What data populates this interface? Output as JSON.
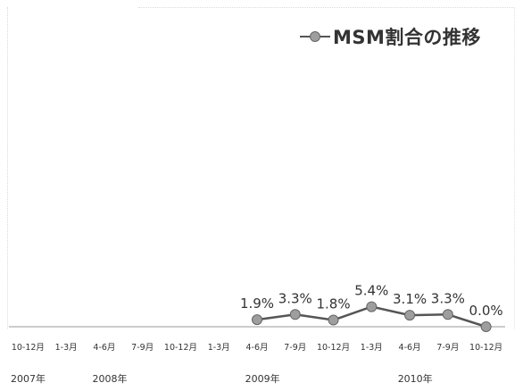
{
  "chart_data": {
    "type": "line",
    "legend": {
      "label": "MSM割合の推移",
      "placement": "top-right"
    },
    "categories": [
      "10-12月",
      "1-3月",
      "4-6月",
      "7-9月",
      "10-12月",
      "1-3月",
      "4-6月",
      "7-9月",
      "10-12月",
      "1-3月",
      "4-6月",
      "7-9月",
      "10-12月"
    ],
    "years": [
      {
        "label": "2007年",
        "start_index": 0
      },
      {
        "label": "2008年",
        "start_index": 2
      },
      {
        "label": "2009年",
        "start_index": 6
      },
      {
        "label": "2010年",
        "start_index": 10
      }
    ],
    "series": [
      {
        "name": "MSM割合の推移",
        "values": [
          null,
          null,
          null,
          null,
          null,
          null,
          1.9,
          3.3,
          1.8,
          5.4,
          3.1,
          3.3,
          0.0
        ],
        "data_labels": [
          null,
          null,
          null,
          null,
          null,
          null,
          "1.9%",
          "3.3%",
          "1.8%",
          "5.4%",
          "3.1%",
          "3.3%",
          "0.0%"
        ]
      }
    ],
    "ylim": [
      0,
      30
    ],
    "grid": false,
    "colors": {
      "line": "#555555",
      "marker_fill": "#9e9e9e",
      "marker_stroke": "#666666",
      "axis": "#999999"
    }
  }
}
